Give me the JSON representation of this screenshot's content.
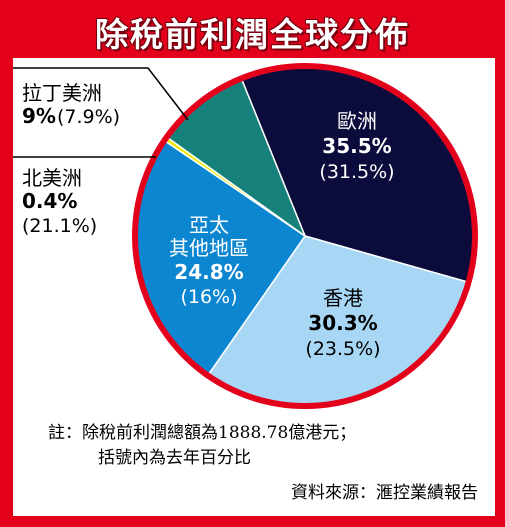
{
  "chart_data": {
    "type": "pie",
    "title": "除稅前利潤全球分佈",
    "slices": [
      {
        "name": "歐洲",
        "value": 35.5,
        "value_label": "35.5%",
        "previous_label": "(31.5%)",
        "color": "#0c0c3c"
      },
      {
        "name": "香港",
        "value": 30.3,
        "value_label": "30.3%",
        "previous_label": "(23.5%)",
        "color": "#a7d7f5"
      },
      {
        "name": "亞太其他地區",
        "value": 24.8,
        "value_label": "24.8%",
        "previous_label": "(16%)",
        "color": "#0d86d2"
      },
      {
        "name": "北美洲",
        "value": 0.4,
        "value_label": "0.4%",
        "previous_label": "(21.1%)",
        "color": "#e8e800"
      },
      {
        "name": "拉丁美洲",
        "value": 9,
        "value_label": "9%",
        "previous_label": "(7.9%)",
        "color": "#16817b"
      }
    ]
  },
  "labels": {
    "asia_line1": "亞太",
    "asia_line2": "其他地區"
  },
  "note": {
    "line1": "註：除稅前利潤總額為1888.78億港元；",
    "line2": "括號內為去年百分比"
  },
  "source": "資料來源：滙控業績報告"
}
